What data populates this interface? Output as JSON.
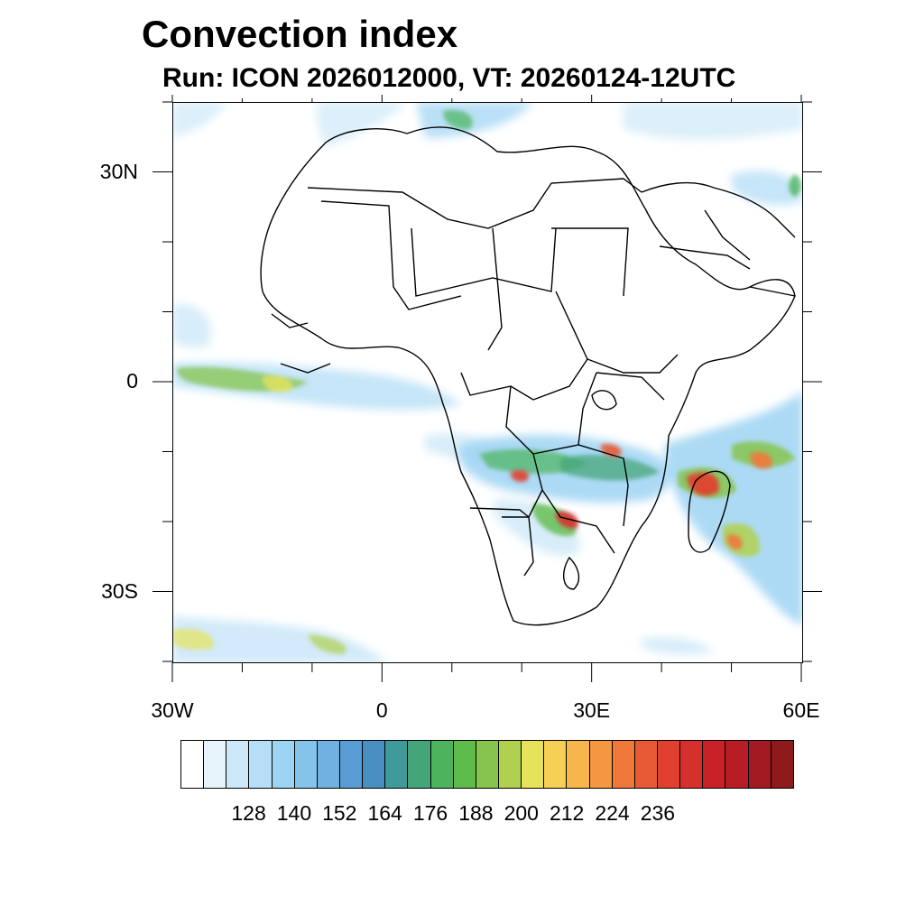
{
  "title": "Convection index",
  "subtitle": "Run: ICON 2026012000,  VT: 20260124-12UTC",
  "map": {
    "lon_range": [
      -30,
      60
    ],
    "lat_range": [
      -40,
      40
    ],
    "y_ticks": [
      {
        "lat": 30,
        "label": "30N"
      },
      {
        "lat": 0,
        "label": "0"
      },
      {
        "lat": -30,
        "label": "30S"
      }
    ],
    "x_ticks": [
      {
        "lon": -30,
        "label": "30W"
      },
      {
        "lon": 0,
        "label": "0"
      },
      {
        "lon": 30,
        "label": "30E"
      },
      {
        "lon": 60,
        "label": "60E"
      }
    ]
  },
  "colorbar": {
    "colors": [
      "#ffffff",
      "#e8f4fc",
      "#cde8f8",
      "#b6def6",
      "#9dd3f3",
      "#86c3ea",
      "#70b1e2",
      "#5a9cd4",
      "#4a8fc2",
      "#3f9a9a",
      "#45a57a",
      "#4db35c",
      "#5fbb4a",
      "#86c44e",
      "#b0d050",
      "#e6e35a",
      "#f6cf55",
      "#f7b64b",
      "#f59641",
      "#f0783a",
      "#e85a33",
      "#e0412f",
      "#d6302c",
      "#c82228",
      "#b81c24",
      "#a41a22",
      "#8e1a1c"
    ],
    "ticks": [
      "128",
      "140",
      "152",
      "164",
      "176",
      "188",
      "200",
      "212",
      "224",
      "236"
    ]
  }
}
